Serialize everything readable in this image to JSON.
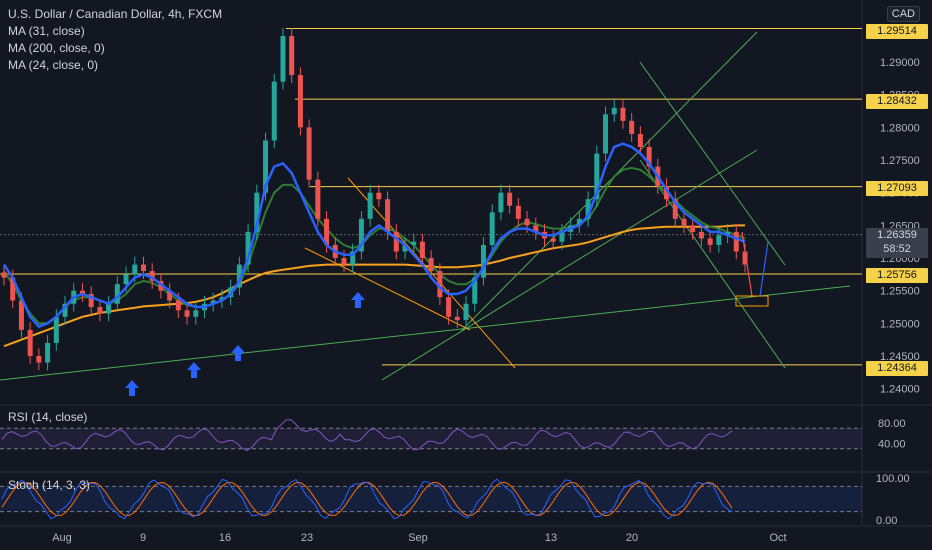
{
  "legend": {
    "symbol": "U.S. Dollar / Canadian Dollar, 4h, FXCM",
    "ma1": "MA (31, close)",
    "ma2": "MA (200, close, 0)",
    "ma3": "MA (24, close, 0)"
  },
  "currency": "CAD",
  "rsi_label": "RSI (14, close)",
  "stoch_label": "Stoch (14, 3, 3)",
  "current_price": {
    "value": "1.26359",
    "countdown": "58:52"
  },
  "colors": {
    "up": "#26a69a",
    "down": "#ef5350",
    "ma31": "#2962ff",
    "ma200": "#f7a21b",
    "ma24": "#2e7d32",
    "level": "#f5d24a",
    "rsi": "#7e57c2",
    "stoch_k": "#2962ff",
    "stoch_d": "#ff6d00",
    "trend_green": "#4caf50",
    "trend_orange": "#ff9800"
  },
  "chart_data": {
    "type": "candlestick",
    "price_axis": {
      "min": 1.2375,
      "max": 1.2995,
      "ticks": [
        "1.24000",
        "1.24500",
        "1.25000",
        "1.25500",
        "1.26000",
        "1.26500",
        "1.27000",
        "1.27500",
        "1.28000",
        "1.28500",
        "1.29000"
      ]
    },
    "time_axis": [
      "Aug",
      "9",
      "16",
      "23",
      "Sep",
      "13",
      "20",
      "Oct"
    ],
    "horizontal_levels": [
      "1.29514",
      "1.28432",
      "1.27093",
      "1.25756",
      "1.24364"
    ],
    "close_series": [
      1.257,
      1.2535,
      1.249,
      1.245,
      1.244,
      1.247,
      1.251,
      1.253,
      1.255,
      1.2545,
      1.2525,
      1.2515,
      1.253,
      1.256,
      1.2575,
      1.259,
      1.258,
      1.2565,
      1.255,
      1.2535,
      1.252,
      1.251,
      1.252,
      1.253,
      1.2535,
      1.254,
      1.2555,
      1.259,
      1.264,
      1.27,
      1.278,
      1.287,
      1.294,
      1.288,
      1.28,
      1.272,
      1.266,
      1.262,
      1.26,
      1.259,
      1.261,
      1.266,
      1.27,
      1.269,
      1.264,
      1.261,
      1.262,
      1.2625,
      1.26,
      1.258,
      1.254,
      1.251,
      1.2505,
      1.253,
      1.257,
      1.262,
      1.267,
      1.27,
      1.268,
      1.266,
      1.265,
      1.264,
      1.263,
      1.2625,
      1.264,
      1.265,
      1.266,
      1.269,
      1.276,
      1.282,
      1.283,
      1.281,
      1.279,
      1.277,
      1.274,
      1.271,
      1.269,
      1.266,
      1.265,
      1.264,
      1.263,
      1.262,
      1.2635,
      1.264,
      1.261,
      1.259
    ],
    "ma31": [
      1.259,
      1.257,
      1.254,
      1.251,
      1.2495,
      1.25,
      1.251,
      1.2525,
      1.254,
      1.2545,
      1.254,
      1.2535,
      1.253,
      1.254,
      1.2555,
      1.257,
      1.2575,
      1.257,
      1.256,
      1.255,
      1.254,
      1.253,
      1.2525,
      1.2525,
      1.253,
      1.2535,
      1.2545,
      1.2565,
      1.26,
      1.265,
      1.271,
      1.274,
      1.2745,
      1.273,
      1.27,
      1.267,
      1.264,
      1.262,
      1.261,
      1.2605,
      1.2605,
      1.262,
      1.264,
      1.265,
      1.264,
      1.263,
      1.262,
      1.2605,
      1.259,
      1.257,
      1.2555,
      1.2545,
      1.2545,
      1.255,
      1.2565,
      1.2585,
      1.261,
      1.263,
      1.264,
      1.2645,
      1.2645,
      1.264,
      1.2635,
      1.2635,
      1.264,
      1.2645,
      1.265,
      1.2665,
      1.27,
      1.274,
      1.277,
      1.2775,
      1.277,
      1.276,
      1.2745,
      1.2725,
      1.2705,
      1.2685,
      1.267,
      1.266,
      1.265,
      1.264,
      1.264,
      1.2635,
      1.263,
      1.2625
    ],
    "ma24": [
      1.258,
      1.256,
      1.2535,
      1.2515,
      1.25,
      1.25,
      1.251,
      1.2525,
      1.2535,
      1.254,
      1.254,
      1.2535,
      1.253,
      1.2535,
      1.2545,
      1.256,
      1.2565,
      1.2562,
      1.2555,
      1.2545,
      1.2535,
      1.2528,
      1.2525,
      1.2526,
      1.253,
      1.2535,
      1.2545,
      1.256,
      1.259,
      1.263,
      1.267,
      1.27,
      1.2712,
      1.2712,
      1.27,
      1.268,
      1.266,
      1.2645,
      1.263,
      1.262,
      1.2615,
      1.262,
      1.2635,
      1.2645,
      1.2645,
      1.264,
      1.263,
      1.262,
      1.2605,
      1.259,
      1.2575,
      1.2565,
      1.256,
      1.256,
      1.2568,
      1.2585,
      1.2605,
      1.2625,
      1.264,
      1.265,
      1.2655,
      1.2652,
      1.2648,
      1.2645,
      1.2645,
      1.2648,
      1.2652,
      1.266,
      1.268,
      1.2705,
      1.2725,
      1.2735,
      1.2738,
      1.2735,
      1.2725,
      1.2712,
      1.27,
      1.2688,
      1.2675,
      1.2665,
      1.2655,
      1.2648,
      1.2645,
      1.264,
      1.2635,
      1.263
    ],
    "ma200": [
      1.2465,
      1.247,
      1.2475,
      1.248,
      1.2485,
      1.249,
      1.2495,
      1.25,
      1.2505,
      1.251,
      1.2513,
      1.2516,
      1.2518,
      1.252,
      1.2522,
      1.2524,
      1.2526,
      1.2527,
      1.2528,
      1.2529,
      1.253,
      1.2531,
      1.2533,
      1.2536,
      1.254,
      1.2546,
      1.2553,
      1.256,
      1.2566,
      1.2572,
      1.2577,
      1.258,
      1.2582,
      1.2584,
      1.2586,
      1.2588,
      1.2589,
      1.259,
      1.259,
      1.259,
      1.259,
      1.259,
      1.259,
      1.259,
      1.259,
      1.259,
      1.259,
      1.2589,
      1.2588,
      1.2587,
      1.2586,
      1.2586,
      1.2586,
      1.2587,
      1.2588,
      1.259,
      1.2593,
      1.2596,
      1.26,
      1.2603,
      1.2606,
      1.2609,
      1.2612,
      1.2615,
      1.2617,
      1.2619,
      1.2621,
      1.2624,
      1.2628,
      1.2632,
      1.2636,
      1.264,
      1.2643,
      1.2645,
      1.2646,
      1.2647,
      1.2648,
      1.2648,
      1.2648,
      1.2648,
      1.2648,
      1.2648,
      1.2648,
      1.2649,
      1.265,
      1.265
    ],
    "rsi": {
      "range": [
        0,
        100
      ],
      "bands": [
        70,
        30
      ],
      "ticks": [
        "80.00",
        "40.00"
      ]
    },
    "stoch": {
      "range": [
        0,
        100
      ],
      "bands": [
        80,
        20
      ],
      "ticks": [
        "100.00",
        "0.00"
      ]
    }
  }
}
